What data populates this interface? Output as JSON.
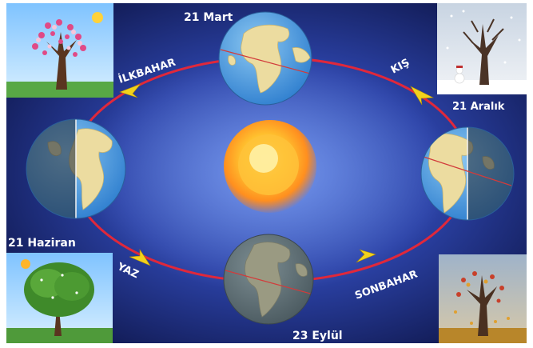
{
  "dates": {
    "march": "21 Mart",
    "december": "21 Aralık",
    "june": "21 Haziran",
    "september": "23 Eylül"
  },
  "seasons": {
    "spring": "İLKBAHAR",
    "winter": "KIŞ",
    "summer": "YAZ",
    "autumn": "SONBAHAR"
  },
  "colors": {
    "background_center": "#3f63cc",
    "background_edge": "#0c1240",
    "orbit": "#e0283b",
    "arrow": "#f2d21c",
    "sun": "#ffb42a",
    "ocean": "#4f9fe0",
    "land": "#e8d79a"
  },
  "icons": [
    "sun-icon",
    "earth-globe-icon",
    "tree-icon",
    "orbit-arrow-icon"
  ]
}
